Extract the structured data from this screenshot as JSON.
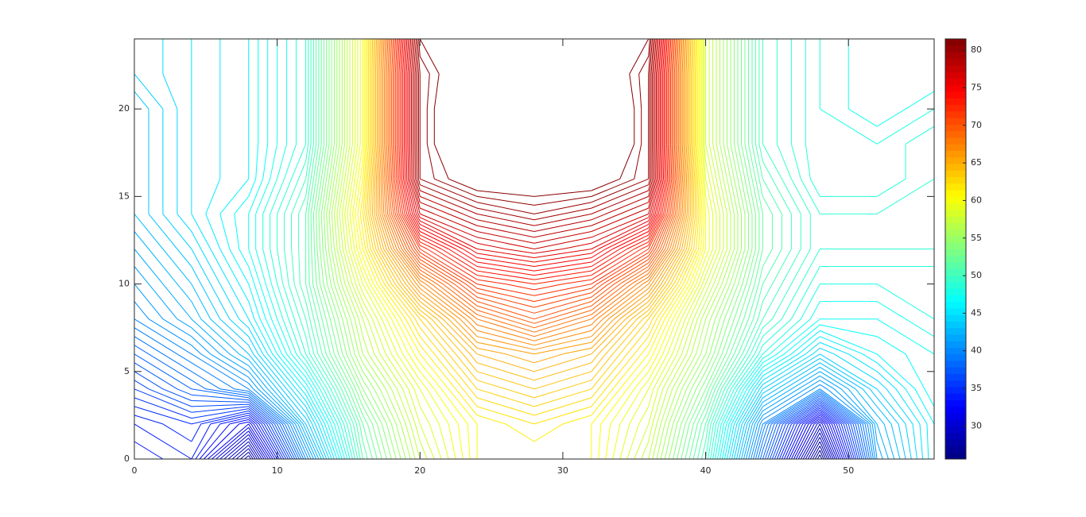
{
  "chart_data": {
    "type": "contour",
    "colormap": "jet",
    "x": [
      0,
      4,
      8,
      12,
      16,
      20,
      24,
      28,
      32,
      36,
      40,
      44,
      48,
      52,
      56
    ],
    "y": [
      0,
      2,
      4,
      6,
      8,
      10,
      12,
      14,
      16,
      18,
      20,
      22,
      24
    ],
    "z": [
      [
        33,
        34,
        27,
        40,
        51,
        57,
        61,
        61,
        61,
        57,
        50,
        38,
        26,
        41,
        46
      ],
      [
        34,
        35,
        32,
        43,
        52,
        58,
        61,
        62,
        61,
        58,
        51,
        40,
        30,
        42,
        46
      ],
      [
        36,
        38,
        40,
        46,
        54,
        59,
        63,
        64,
        63,
        59,
        53,
        44,
        40,
        44,
        47
      ],
      [
        38,
        40,
        43,
        49,
        56,
        61,
        65,
        66,
        65,
        61,
        55,
        48,
        44,
        46,
        47
      ],
      [
        40,
        42,
        45,
        50,
        57,
        63,
        68,
        70,
        68,
        63,
        56,
        50,
        47,
        47,
        48
      ],
      [
        41,
        43,
        46,
        51,
        59,
        67,
        72,
        73,
        72,
        67,
        58,
        51,
        48,
        48,
        48
      ],
      [
        42,
        44,
        47,
        51,
        61,
        72,
        76,
        77,
        76,
        72,
        60,
        52,
        49,
        49,
        49
      ],
      [
        43,
        45,
        47,
        51,
        62,
        77,
        79,
        80,
        79,
        77,
        60,
        52,
        49,
        49,
        49
      ],
      [
        43,
        45,
        46,
        50,
        61,
        80,
        82,
        82,
        82,
        80,
        59,
        51,
        48,
        48,
        49
      ],
      [
        43,
        45,
        46,
        49,
        60,
        80,
        84,
        87,
        84,
        80,
        58,
        50,
        48,
        48,
        49
      ],
      [
        43,
        45,
        46,
        49,
        60,
        80,
        84,
        87,
        84,
        80,
        58,
        50,
        48,
        47,
        48
      ],
      [
        44,
        45,
        46,
        49,
        60,
        80,
        83,
        85,
        83,
        80,
        58,
        50,
        48,
        47,
        47
      ],
      [
        44,
        45,
        46,
        49,
        60,
        81,
        82,
        83,
        82,
        81,
        58,
        50,
        48,
        47,
        47
      ]
    ],
    "levels": [
      26,
      26.5,
      27,
      27.5,
      28,
      28.5,
      29,
      29.5,
      30,
      30.5,
      31,
      31.5,
      32,
      32.5,
      33,
      33.5,
      34,
      34.5,
      35,
      35.5,
      36,
      36.5,
      37,
      37.5,
      38,
      38.5,
      39,
      39.5,
      40,
      40.5,
      41,
      41.5,
      42,
      42.5,
      43,
      43.5,
      44,
      44.5,
      45,
      45.5,
      46,
      46.5,
      47,
      47.5,
      48,
      48.5,
      49,
      49.5,
      50,
      50.5,
      51,
      51.5,
      52,
      52.5,
      53,
      53.5,
      54,
      54.5,
      55,
      55.5,
      56,
      56.5,
      57,
      57.5,
      58,
      58.5,
      59,
      59.5,
      60,
      60.5,
      61,
      61.5,
      62,
      62.5,
      63,
      63.5,
      64,
      64.5,
      65,
      65.5,
      66,
      66.5,
      67,
      67.5,
      68,
      68.5,
      69,
      69.5,
      70,
      70.5,
      71,
      71.5,
      72,
      72.5,
      73,
      73.5,
      74,
      74.5,
      75,
      75.5,
      76,
      76.5,
      77,
      77.5,
      78,
      78.5,
      79,
      79.5,
      80,
      80.5,
      81
    ],
    "xlim": [
      0,
      56
    ],
    "xticks": [
      0,
      10,
      20,
      30,
      40,
      50
    ],
    "ylim": [
      0,
      24
    ],
    "yticks": [
      0,
      5,
      10,
      15,
      20
    ],
    "clim": [
      25.6,
      81.5
    ],
    "cticks": [
      30,
      35,
      40,
      45,
      50,
      55,
      60,
      65,
      70,
      75,
      80
    ]
  }
}
